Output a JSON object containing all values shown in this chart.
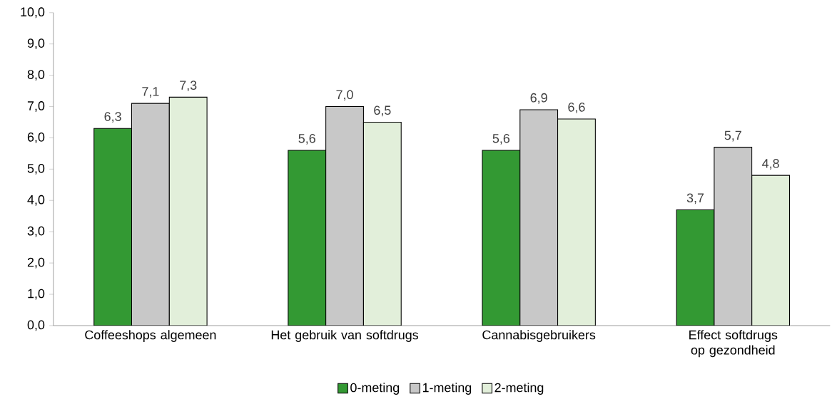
{
  "chart_data": {
    "type": "bar",
    "categories": [
      "Coffeeshops algemeen",
      "Het gebruik van softdrugs",
      "Cannabisgebruikers",
      "Effect softdrugs op gezondheid"
    ],
    "series": [
      {
        "name": "0-meting",
        "color": "#339933",
        "values": [
          6.3,
          5.6,
          5.6,
          3.7
        ],
        "value_labels": [
          "6,3",
          "5,6",
          "5,6",
          "3,7"
        ]
      },
      {
        "name": "1-meting",
        "color": "#c8c8c8",
        "values": [
          7.1,
          7.0,
          6.9,
          5.7
        ],
        "value_labels": [
          "7,1",
          "7,0",
          "6,9",
          "5,7"
        ]
      },
      {
        "name": "2-meting",
        "color": "#e2efda",
        "values": [
          7.3,
          6.5,
          6.6,
          4.8
        ],
        "value_labels": [
          "7,3",
          "6,5",
          "6,6",
          "4,8"
        ]
      }
    ],
    "ylim": [
      0,
      10
    ],
    "yticks": [
      {
        "value": 0,
        "label": "0,0"
      },
      {
        "value": 1,
        "label": "1,0"
      },
      {
        "value": 2,
        "label": "2,0"
      },
      {
        "value": 3,
        "label": "3,0"
      },
      {
        "value": 4,
        "label": "4,0"
      },
      {
        "value": 5,
        "label": "5,0"
      },
      {
        "value": 6,
        "label": "6,0"
      },
      {
        "value": 7,
        "label": "7,0"
      },
      {
        "value": 8,
        "label": "8,0"
      },
      {
        "value": 9,
        "label": "9,0"
      },
      {
        "value": 10,
        "label": "10,0"
      }
    ],
    "grid": false,
    "legend": "bottom"
  }
}
